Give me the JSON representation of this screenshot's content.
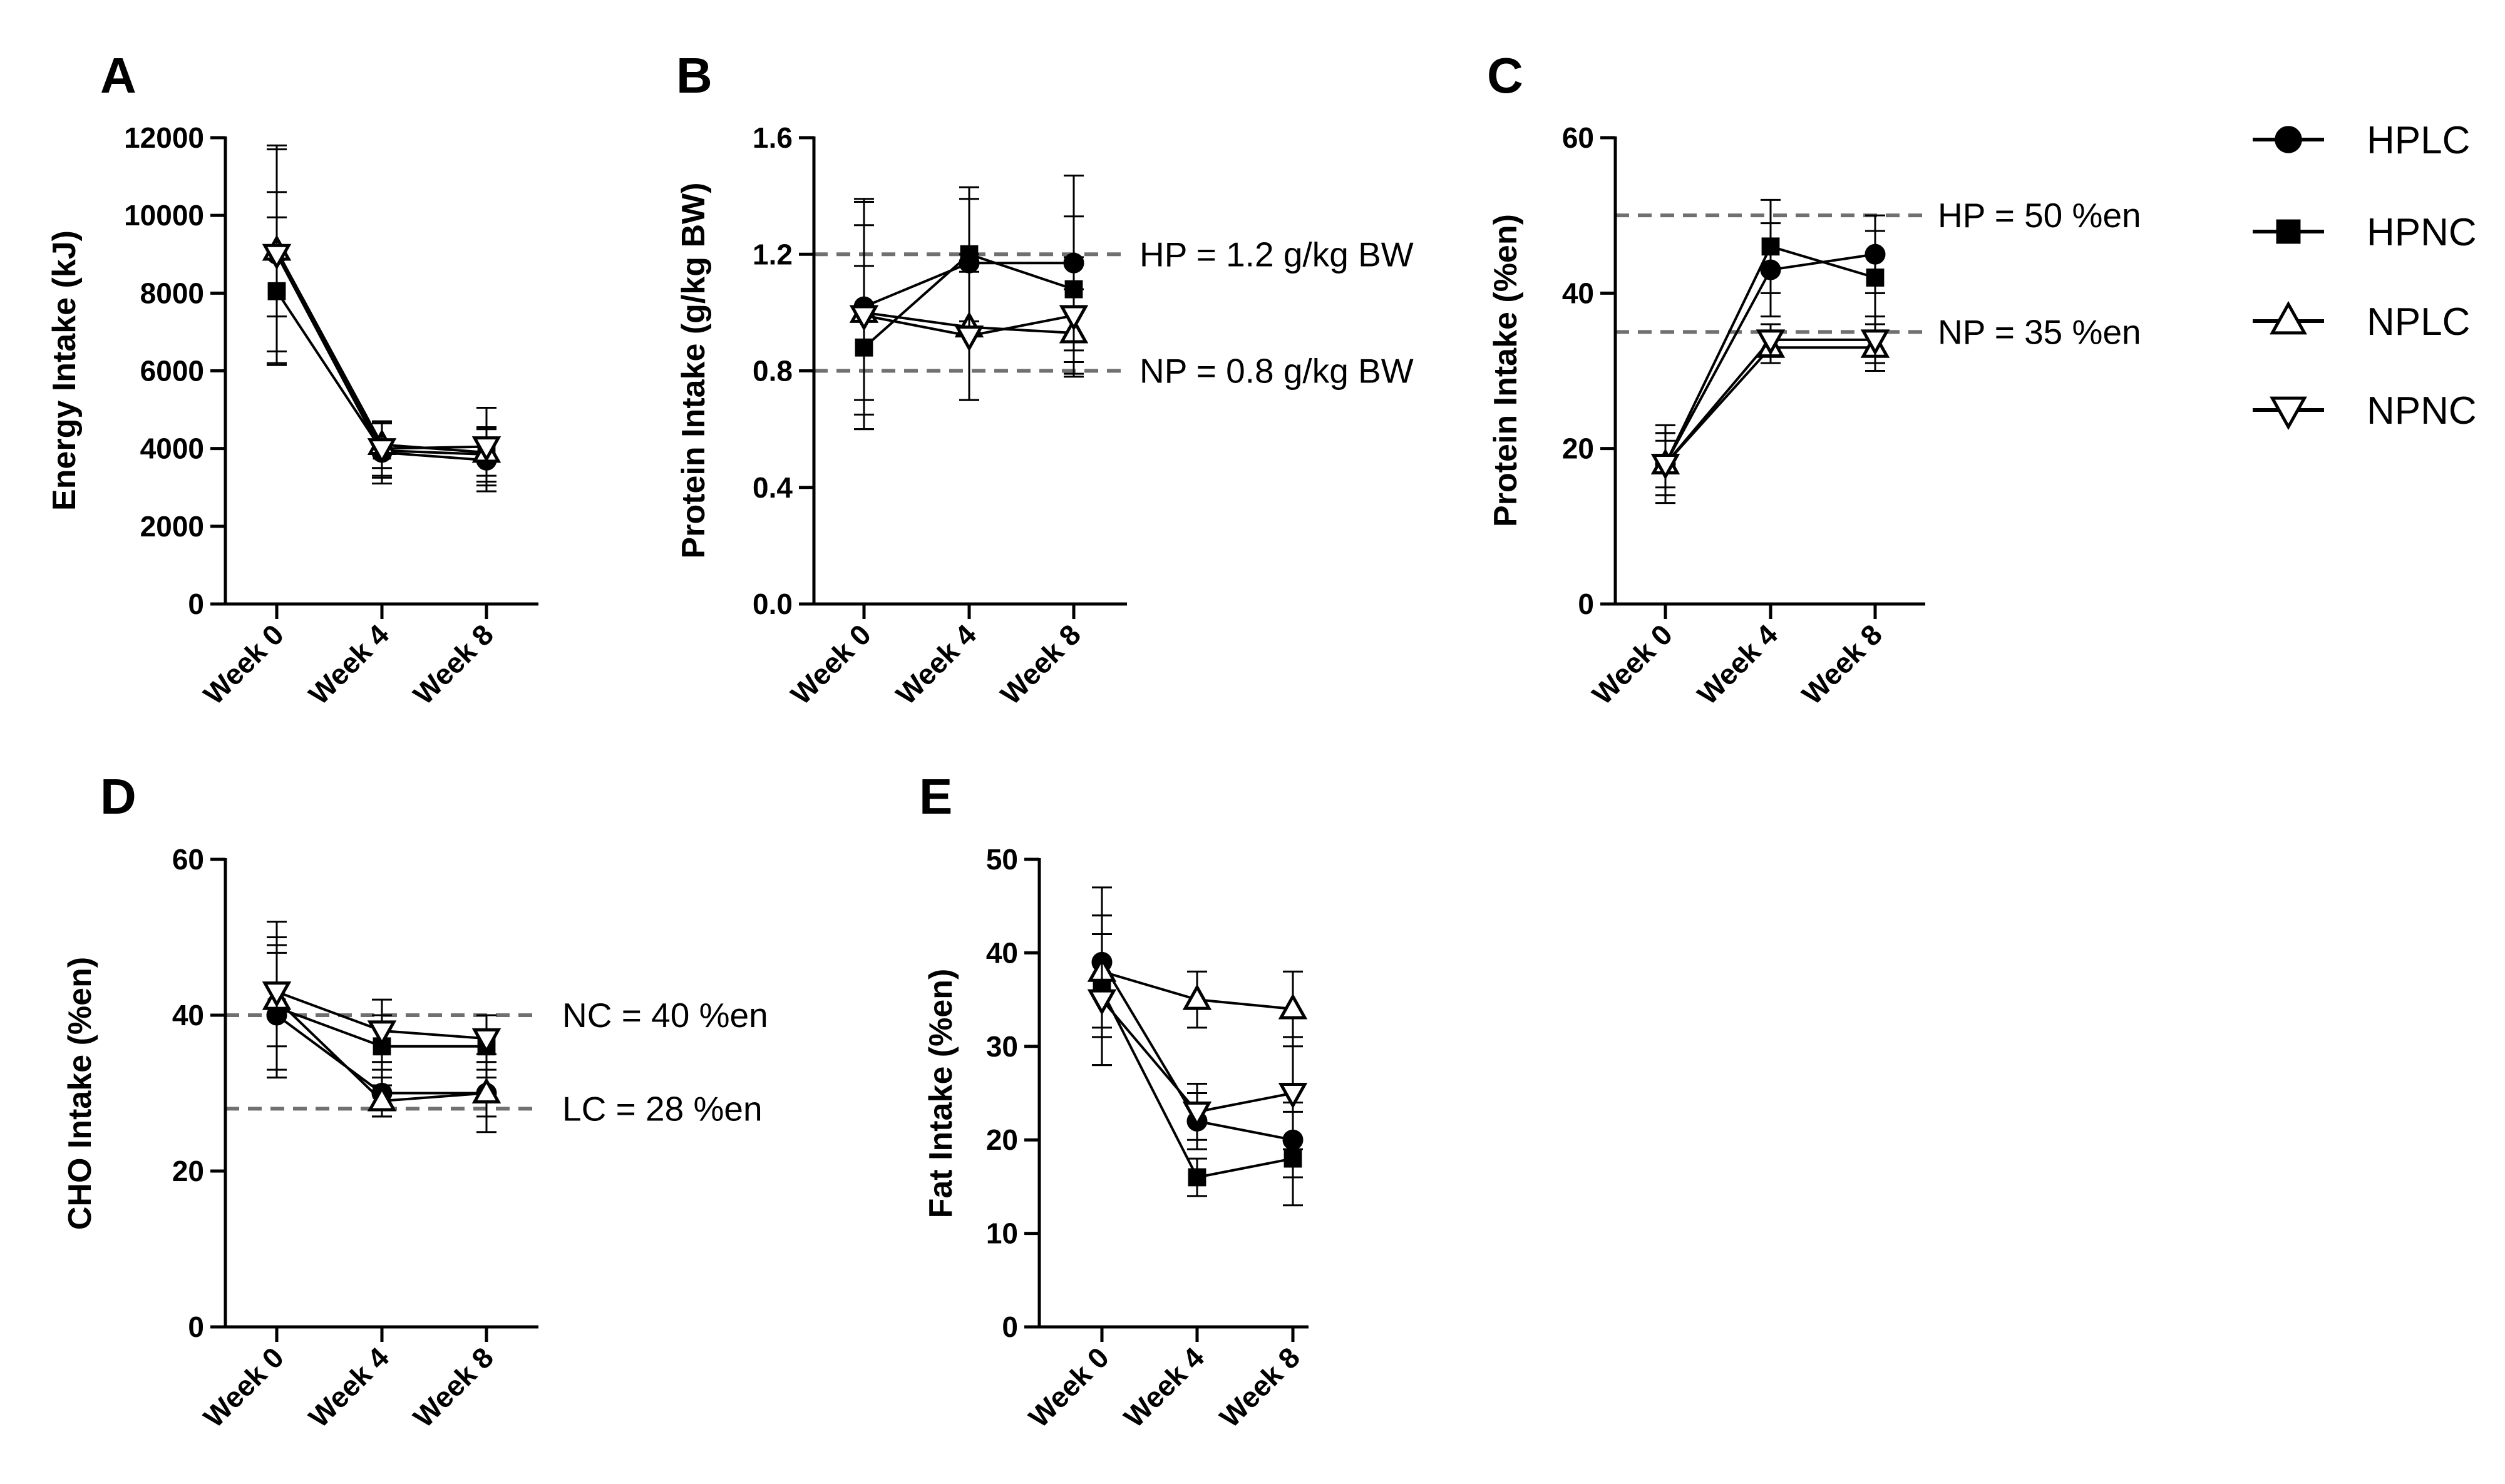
{
  "legend": [
    {
      "name": "HPLC",
      "marker": "circle"
    },
    {
      "name": "HPNC",
      "marker": "square"
    },
    {
      "name": "NPLC",
      "marker": "triangle-up-open"
    },
    {
      "name": "NPNC",
      "marker": "triangle-down-open"
    }
  ],
  "chart_data": [
    {
      "panel": "A",
      "type": "line",
      "ylabel": "Energy Intake (kJ)",
      "categories": [
        "Week 0",
        "Week 4",
        "Week 8"
      ],
      "ylim": [
        0,
        12000
      ],
      "yticks": [
        0,
        2000,
        4000,
        6000,
        8000,
        10000,
        12000
      ],
      "yticklabels": [
        "0",
        "2000",
        "4000",
        "6000",
        "8000",
        "10000",
        "12000"
      ],
      "series": [
        {
          "name": "HPLC",
          "values": [
            9000,
            3900,
            3700
          ],
          "errors": [
            2800,
            800,
            800
          ]
        },
        {
          "name": "HPNC",
          "values": [
            8050,
            3950,
            3850
          ],
          "errors": [
            1900,
            700,
            700
          ]
        },
        {
          "name": "NPLC",
          "values": [
            9100,
            4100,
            3900
          ],
          "errors": [
            2600,
            600,
            600
          ]
        },
        {
          "name": "NPNC",
          "values": [
            9000,
            4000,
            4050
          ],
          "errors": [
            1600,
            700,
            1000
          ]
        }
      ],
      "reference_lines": []
    },
    {
      "panel": "B",
      "type": "line",
      "ylabel": "Protein Intake (g/kg BW)",
      "categories": [
        "Week 0",
        "Week 4",
        "Week 8"
      ],
      "ylim": [
        0,
        1.6
      ],
      "yticks": [
        0,
        0.4,
        0.8,
        1.2,
        1.6
      ],
      "yticklabels": [
        "0.0",
        "0.4",
        "0.8",
        "1.2",
        "1.6"
      ],
      "series": [
        {
          "name": "HPLC",
          "values": [
            1.02,
            1.17,
            1.17
          ],
          "errors": [
            0.37,
            0.22,
            0.3
          ]
        },
        {
          "name": "HPNC",
          "values": [
            0.88,
            1.2,
            1.08
          ],
          "errors": [
            0.28,
            0.23,
            0.25
          ]
        },
        {
          "name": "NPLC",
          "values": [
            1.0,
            0.95,
            0.93
          ],
          "errors": [
            0.3,
            0.25,
            0.15
          ]
        },
        {
          "name": "NPNC",
          "values": [
            0.99,
            0.92,
            0.99
          ],
          "errors": [
            0.39,
            0.22,
            0.2
          ]
        }
      ],
      "reference_lines": [
        {
          "value": 1.2,
          "label": "HP = 1.2 g/kg BW"
        },
        {
          "value": 0.8,
          "label": "NP = 0.8 g/kg BW"
        }
      ]
    },
    {
      "panel": "C",
      "type": "line",
      "ylabel": "Protein Intake (%en)",
      "categories": [
        "Week 0",
        "Week 4",
        "Week 8"
      ],
      "ylim": [
        0,
        60
      ],
      "yticks": [
        0,
        20,
        40,
        60
      ],
      "yticklabels": [
        "0",
        "20",
        "40",
        "60"
      ],
      "series": [
        {
          "name": "HPLC",
          "values": [
            18,
            43,
            45
          ],
          "errors": [
            4,
            6,
            5
          ]
        },
        {
          "name": "HPNC",
          "values": [
            18,
            46,
            42
          ],
          "errors": [
            5,
            6,
            6
          ]
        },
        {
          "name": "NPLC",
          "values": [
            18,
            33,
            33
          ],
          "errors": [
            4,
            2,
            3
          ]
        },
        {
          "name": "NPNC",
          "values": [
            18,
            34,
            34
          ],
          "errors": [
            3,
            2,
            3
          ]
        }
      ],
      "reference_lines": [
        {
          "value": 50,
          "label": "HP = 50 %en"
        },
        {
          "value": 35,
          "label": "NP = 35 %en"
        }
      ]
    },
    {
      "panel": "D",
      "type": "line",
      "ylabel": "CHO Intake (%en)",
      "categories": [
        "Week 0",
        "Week 4",
        "Week 8"
      ],
      "ylim": [
        0,
        60
      ],
      "yticks": [
        0,
        20,
        40,
        60
      ],
      "yticklabels": [
        "0",
        "20",
        "40",
        "60"
      ],
      "series": [
        {
          "name": "HPLC",
          "values": [
            40,
            30,
            30
          ],
          "errors": [
            8,
            3,
            5
          ]
        },
        {
          "name": "HPNC",
          "values": [
            41,
            36,
            36
          ],
          "errors": [
            8,
            4,
            4
          ]
        },
        {
          "name": "NPLC",
          "values": [
            42,
            29,
            30
          ],
          "errors": [
            10,
            2,
            3
          ]
        },
        {
          "name": "NPNC",
          "values": [
            43,
            38,
            37
          ],
          "errors": [
            7,
            4,
            3
          ]
        }
      ],
      "reference_lines": [
        {
          "value": 40,
          "label": "NC = 40 %en"
        },
        {
          "value": 28,
          "label": "LC = 28 %en"
        }
      ]
    },
    {
      "panel": "E",
      "type": "line",
      "ylabel": "Fat Intake (%en)",
      "categories": [
        "Week 0",
        "Week 4",
        "Week 8"
      ],
      "ylim": [
        0,
        50
      ],
      "yticks": [
        0,
        10,
        20,
        30,
        40,
        50
      ],
      "yticklabels": [
        "0",
        "10",
        "20",
        "30",
        "40",
        "50"
      ],
      "series": [
        {
          "name": "HPLC",
          "values": [
            39,
            22,
            20
          ],
          "errors": [
            8,
            3,
            4
          ]
        },
        {
          "name": "HPNC",
          "values": [
            36,
            16,
            18
          ],
          "errors": [
            8,
            2,
            5
          ]
        },
        {
          "name": "NPLC",
          "values": [
            38,
            35,
            34
          ],
          "errors": [
            6,
            3,
            4
          ]
        },
        {
          "name": "NPNC",
          "values": [
            35,
            23,
            25
          ],
          "errors": [
            7,
            3,
            6
          ]
        }
      ],
      "reference_lines": []
    }
  ]
}
